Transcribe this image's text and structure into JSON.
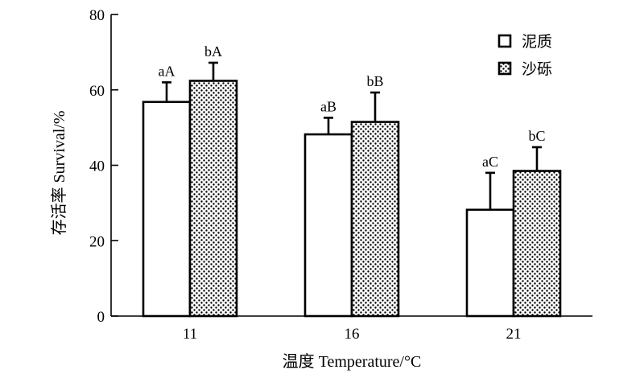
{
  "chart_data": {
    "type": "bar",
    "title": "",
    "xlabel": "温度 Temperature/°C",
    "ylabel": "存活率 Survival/%",
    "ylim": [
      0,
      80
    ],
    "yticks": [
      "0",
      "20",
      "40",
      "60",
      "80"
    ],
    "categories": [
      "11",
      "16",
      "21"
    ],
    "series": [
      {
        "name": "泥质",
        "fill": "#ffffff",
        "pattern": "none",
        "values": [
          56.8,
          48.2,
          28.2
        ],
        "errors": [
          5.2,
          4.4,
          9.8
        ],
        "labels": [
          "aA",
          "aB",
          "aC"
        ]
      },
      {
        "name": "沙砾",
        "fill": "#ffffff",
        "pattern": "dots",
        "values": [
          62.4,
          51.5,
          38.5
        ],
        "errors": [
          4.8,
          7.8,
          6.3
        ],
        "labels": [
          "bA",
          "bB",
          "bC"
        ]
      }
    ],
    "legend_position": "top-right",
    "grid": false
  }
}
